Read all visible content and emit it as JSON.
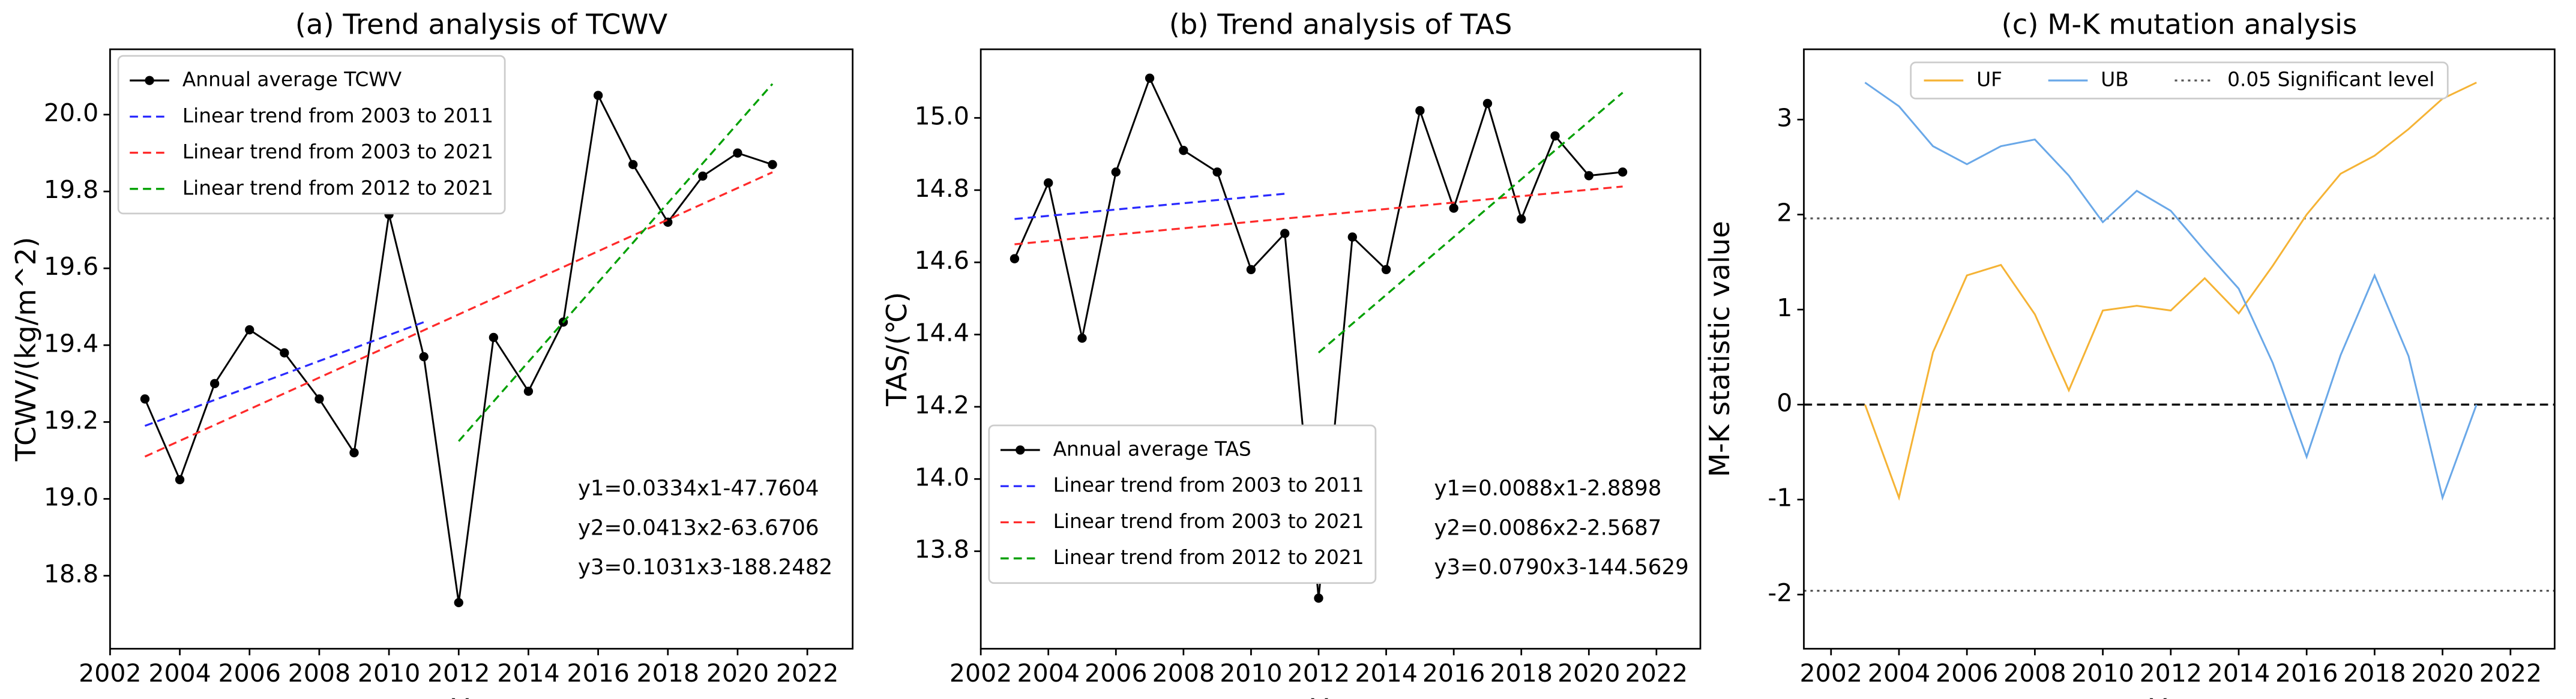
{
  "chart_data": [
    {
      "type": "line",
      "title": "(a) Trend analysis of TCWV",
      "x_label": "Year",
      "y_label": "TCWV/(kg/m^2)",
      "xlim": [
        2002,
        2023.3
      ],
      "ylim": [
        18.61,
        20.17
      ],
      "xticks": [
        2002,
        2004,
        2006,
        2008,
        2010,
        2012,
        2014,
        2016,
        2018,
        2020,
        2022
      ],
      "yticks": [
        18.8,
        {
          "value": 19,
          "label": "19.0"
        },
        19.2,
        19.4,
        19.6,
        19.8,
        {
          "value": 20,
          "label": "20.0"
        }
      ],
      "legend": "upper left",
      "series": [
        {
          "name": "Annual average TCWV",
          "color": "#000000",
          "marker": true,
          "x": [
            2003,
            2004,
            2005,
            2006,
            2007,
            2008,
            2009,
            2010,
            2011,
            2012,
            2013,
            2014,
            2015,
            2016,
            2017,
            2018,
            2019,
            2020,
            2021
          ],
          "values": [
            19.26,
            19.05,
            19.3,
            19.44,
            19.38,
            19.26,
            19.12,
            19.74,
            19.37,
            18.73,
            19.42,
            19.28,
            19.46,
            20.05,
            19.87,
            19.72,
            19.84,
            19.9,
            19.87
          ]
        },
        {
          "name": "Linear trend from 2003 to 2011",
          "color": "#2a2aff",
          "dash": "dash",
          "x": [
            2003,
            2011
          ],
          "values": [
            19.19,
            19.46
          ]
        },
        {
          "name": "Linear trend from 2003 to 2021",
          "color": "#ff2a2a",
          "dash": "dash",
          "x": [
            2003,
            2021
          ],
          "values": [
            19.11,
            19.85
          ]
        },
        {
          "name": "Linear trend from 2012 to 2021",
          "color": "#00a000",
          "dash": "dash",
          "x": [
            2012,
            2021
          ],
          "values": [
            19.15,
            20.08
          ]
        }
      ],
      "annotations": [
        "y1=0.0334x1-47.7604",
        "y2=0.0413x2-63.6706",
        "y3=0.1031x3-188.2482"
      ]
    },
    {
      "type": "line",
      "title": "(b) Trend analysis of TAS",
      "x_label": "Year",
      "y_label": "TAS/(℃)",
      "xlim": [
        2002,
        2023.3
      ],
      "ylim": [
        13.53,
        15.19
      ],
      "xticks": [
        2002,
        2004,
        2006,
        2008,
        2010,
        2012,
        2014,
        2016,
        2018,
        2020,
        2022
      ],
      "yticks": [
        13.8,
        {
          "value": 14,
          "label": "14.0"
        },
        14.2,
        14.4,
        14.6,
        14.8,
        {
          "value": 15,
          "label": "15.0"
        }
      ],
      "legend": "lower left",
      "series": [
        {
          "name": "Annual average TAS",
          "color": "#000000",
          "marker": true,
          "x": [
            2003,
            2004,
            2005,
            2006,
            2007,
            2008,
            2009,
            2010,
            2011,
            2012,
            2013,
            2014,
            2015,
            2016,
            2017,
            2018,
            2019,
            2020,
            2021
          ],
          "values": [
            14.61,
            14.82,
            14.39,
            14.85,
            15.11,
            14.91,
            14.85,
            14.58,
            14.68,
            13.67,
            14.67,
            14.58,
            15.02,
            14.75,
            15.04,
            14.72,
            14.95,
            14.84,
            14.85
          ]
        },
        {
          "name": "Linear trend from 2003 to 2011",
          "color": "#2a2aff",
          "dash": "dash",
          "x": [
            2003,
            2011
          ],
          "values": [
            14.72,
            14.79
          ]
        },
        {
          "name": "Linear trend from 2003 to 2021",
          "color": "#ff2a2a",
          "dash": "dash",
          "x": [
            2003,
            2021
          ],
          "values": [
            14.65,
            14.81
          ]
        },
        {
          "name": "Linear trend from 2012 to 2021",
          "color": "#00a000",
          "dash": "dash",
          "x": [
            2012,
            2021
          ],
          "values": [
            14.35,
            15.07
          ]
        }
      ],
      "annotations": [
        "y1=0.0088x1-2.8898",
        "y2=0.0086x2-2.5687",
        "y3=0.0790x3-144.5629"
      ]
    },
    {
      "type": "line",
      "title": "(c) M-K mutation analysis",
      "x_label": "Year",
      "y_label": "M-K statistic value",
      "xlim": [
        2001.2,
        2023.3
      ],
      "ylim": [
        -2.57,
        3.74
      ],
      "xticks": [
        2002,
        2004,
        2006,
        2008,
        2010,
        2012,
        2014,
        2016,
        2018,
        2020,
        2022
      ],
      "yticks": [
        -2,
        -1,
        0,
        1,
        2,
        3
      ],
      "legend": "upper center",
      "series": [
        {
          "name": "UF",
          "color": "#f5b335",
          "x": [
            2003,
            2004,
            2005,
            2006,
            2007,
            2008,
            2009,
            2010,
            2011,
            2012,
            2013,
            2014,
            2015,
            2016,
            2017,
            2018,
            2019,
            2020,
            2021
          ],
          "values": [
            0,
            -0.98,
            0.55,
            1.36,
            1.47,
            0.95,
            0.15,
            0.99,
            1.04,
            0.99,
            1.33,
            0.96,
            1.46,
            2.0,
            2.43,
            2.62,
            2.9,
            3.22,
            3.39
          ]
        },
        {
          "name": "UB",
          "color": "#6aa8e8",
          "x": [
            2003,
            2004,
            2005,
            2006,
            2007,
            2008,
            2009,
            2010,
            2011,
            2012,
            2013,
            2014,
            2015,
            2016,
            2017,
            2018,
            2019,
            2020,
            2021
          ],
          "values": [
            3.39,
            3.14,
            2.72,
            2.53,
            2.72,
            2.79,
            2.41,
            1.92,
            2.25,
            2.04,
            1.62,
            1.22,
            0.44,
            -0.55,
            0.52,
            1.36,
            0.51,
            -0.98,
            0
          ]
        }
      ],
      "hlines": [
        {
          "name": "0.05 Significant level",
          "values": [
            1.96,
            -1.96
          ],
          "color": "#555555",
          "dash": "dot"
        },
        {
          "values": [
            0
          ],
          "color": "#000000",
          "dash": "dash"
        }
      ]
    }
  ]
}
